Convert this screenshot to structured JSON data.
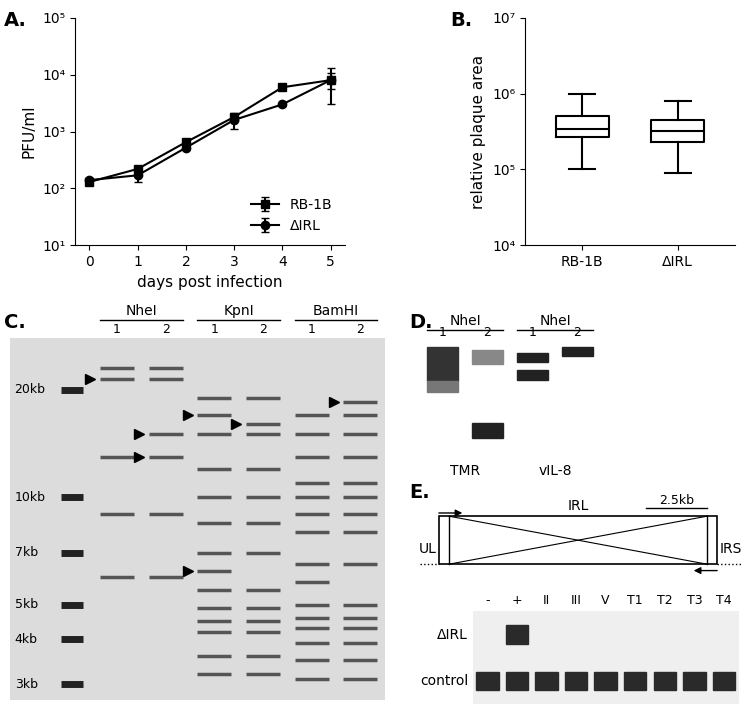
{
  "panel_labels": [
    "A.",
    "B.",
    "C.",
    "D.",
    "E."
  ],
  "chart_data": [
    {
      "type": "line",
      "x": [
        0,
        1,
        2,
        3,
        4,
        5
      ],
      "xlim": [
        -0.3,
        5.3
      ],
      "xticks": [
        0,
        1,
        2,
        3,
        4,
        5
      ],
      "xlabel": "days post infection",
      "ylabel": "PFU/ml",
      "log": "y",
      "ylim": [
        10,
        100000
      ],
      "yticks": [
        {
          "value": 10,
          "label": "10¹"
        },
        {
          "value": 100,
          "label": "10²"
        },
        {
          "value": 1000,
          "label": "10³"
        },
        {
          "value": 10000,
          "label": "10⁴"
        },
        {
          "value": 100000,
          "label": "10⁵"
        }
      ],
      "legend": "lower right",
      "series": [
        {
          "name": "RB-1B",
          "color": "#000000",
          "marker": "square",
          "values": [
            130,
            220,
            650,
            1800,
            6000,
            8000
          ],
          "errors": [
            10,
            30,
            60,
            200,
            500,
            2500
          ]
        },
        {
          "name": "ΔIRL",
          "color": "#000000",
          "marker": "circle",
          "values": [
            140,
            170,
            520,
            1600,
            3000,
            8000
          ],
          "errors": [
            15,
            40,
            50,
            500,
            200,
            5000
          ]
        }
      ]
    },
    {
      "type": "box",
      "categories": [
        "RB-1B",
        "ΔIRL"
      ],
      "ylabel": "relative plaque area",
      "log": "y",
      "ylim": [
        10000,
        10000000
      ],
      "yticks": [
        {
          "value": 10000,
          "label": "10⁴"
        },
        {
          "value": 100000,
          "label": "10⁵"
        },
        {
          "value": 1000000,
          "label": "10⁶"
        },
        {
          "value": 10000000,
          "label": "10⁷"
        }
      ],
      "color": "#000000",
      "boxes": [
        {
          "min": 100000,
          "q1": 270000,
          "median": 340000,
          "q3": 500000,
          "max": 1000000
        },
        {
          "min": 90000,
          "q1": 230000,
          "median": 320000,
          "q3": 450000,
          "max": 800000
        }
      ]
    }
  ],
  "gel_c": {
    "enzymes": [
      "NheI",
      "KpnI",
      "BamHI"
    ],
    "lanes": [
      "1",
      "2",
      "1",
      "2",
      "1",
      "2"
    ],
    "ylim": [
      2.7,
      28
    ],
    "ladder": [
      {
        "value": 20,
        "label": "20kb"
      },
      {
        "value": 10,
        "label": "10kb"
      },
      {
        "value": 7,
        "label": "7kb"
      },
      {
        "value": 5,
        "label": "5kb"
      },
      {
        "value": 4,
        "label": "4kb"
      },
      {
        "value": 3,
        "label": "3kb"
      }
    ],
    "bands": [
      [
        23,
        21.5,
        13,
        9,
        6
      ],
      [
        23,
        21.5,
        15,
        13,
        9,
        6
      ],
      [
        19,
        17,
        15,
        12,
        10,
        8.5,
        7,
        6.2,
        5.5,
        4.9,
        4.5,
        4.2,
        3.6,
        3.2
      ],
      [
        19,
        16,
        15,
        12,
        10,
        8.5,
        7,
        5.5,
        4.9,
        4.5,
        4.2,
        3.6,
        3.2
      ],
      [
        17,
        15,
        13,
        11,
        10,
        9,
        8,
        6.5,
        5.8,
        5,
        4.6,
        4.3,
        3.9,
        3.5,
        3.1
      ],
      [
        18.5,
        17,
        15,
        13,
        11,
        10,
        9,
        8,
        6.5,
        5,
        4.6,
        4.3,
        3.9,
        3.5,
        3.1
      ]
    ],
    "arrowheads": [
      [
        0,
        21.5
      ],
      [
        1,
        15
      ],
      [
        1,
        13
      ],
      [
        2,
        17
      ],
      [
        3,
        16
      ],
      [
        2,
        6.2
      ],
      [
        5,
        18.5
      ]
    ]
  },
  "blot_d": {
    "enzyme": "NheI",
    "lanes": [
      "1",
      "2"
    ],
    "probes": [
      "TMR",
      "vIL-8"
    ]
  },
  "diagram_e": {
    "left": "UL",
    "center": "IRL",
    "right": "IRS",
    "bracket": "2.5kb",
    "gel": {
      "lanes": [
        "-",
        "+",
        "II",
        "III",
        "V",
        "T1",
        "T2",
        "T3",
        "T4"
      ],
      "rows": [
        {
          "name": "ΔIRL",
          "bands": [
            false,
            true,
            false,
            false,
            false,
            false,
            false,
            false,
            false
          ]
        },
        {
          "name": "control",
          "bands": [
            true,
            true,
            true,
            true,
            true,
            true,
            true,
            true,
            true
          ]
        }
      ]
    }
  }
}
